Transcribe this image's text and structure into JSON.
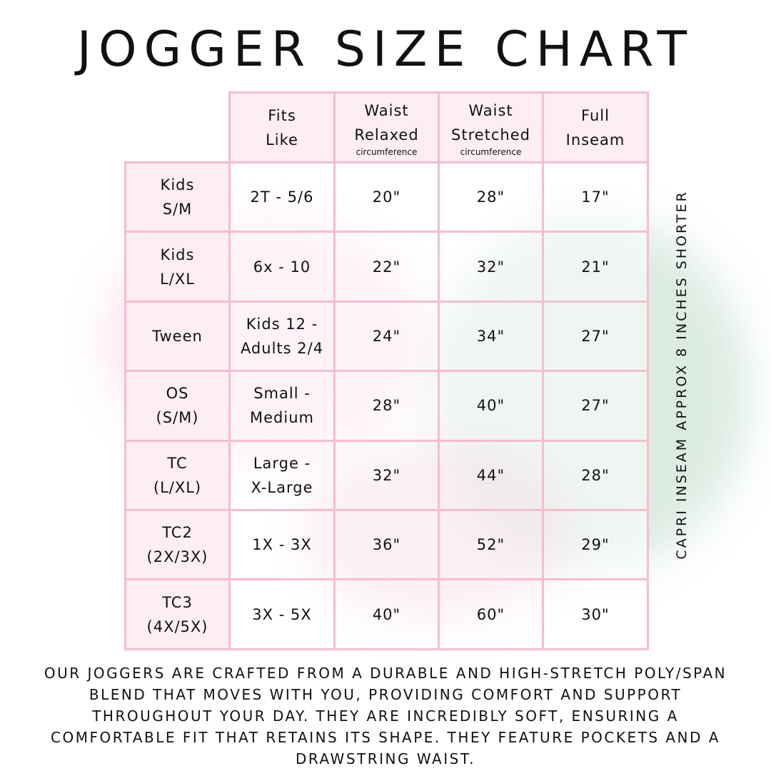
{
  "title": "JOGGER SIZE CHART",
  "headers": [
    {
      "line1": "Fits",
      "line2": "Like",
      "sub": ""
    },
    {
      "line1": "Waist",
      "line2": "Relaxed",
      "sub": "circumference"
    },
    {
      "line1": "Waist",
      "line2": "Stretched",
      "sub": "circumference"
    },
    {
      "line1": "Full",
      "line2": "Inseam",
      "sub": ""
    }
  ],
  "rows": [
    {
      "size": [
        "Kids",
        "S/M"
      ],
      "fits": [
        "2T - 5/6"
      ],
      "relaxed": "20\"",
      "stretched": "28\"",
      "inseam": "17\""
    },
    {
      "size": [
        "Kids",
        "L/XL"
      ],
      "fits": [
        "6x - 10"
      ],
      "relaxed": "22\"",
      "stretched": "32\"",
      "inseam": "21\""
    },
    {
      "size": [
        "Tween"
      ],
      "fits": [
        "Kids 12 -",
        "Adults 2/4"
      ],
      "relaxed": "24\"",
      "stretched": "34\"",
      "inseam": "27\""
    },
    {
      "size": [
        "OS",
        "(S/M)"
      ],
      "fits": [
        "Small -",
        "Medium"
      ],
      "relaxed": "28\"",
      "stretched": "40\"",
      "inseam": "27\""
    },
    {
      "size": [
        "TC",
        "(L/XL)"
      ],
      "fits": [
        "Large -",
        "X-Large"
      ],
      "relaxed": "32\"",
      "stretched": "44\"",
      "inseam": "28\""
    },
    {
      "size": [
        "TC2",
        "(2X/3X)"
      ],
      "fits": [
        "1X - 3X"
      ],
      "relaxed": "36\"",
      "stretched": "52\"",
      "inseam": "29\""
    },
    {
      "size": [
        "TC3",
        "(4X/5X)"
      ],
      "fits": [
        "3X - 5X"
      ],
      "relaxed": "40\"",
      "stretched": "60\"",
      "inseam": "30\""
    }
  ],
  "side_note": "CAPRI INSEAM APPROX 8 INCHES SHORTER",
  "footer": "OUR JOGGERS ARE CRAFTED FROM A DURABLE AND HIGH-STRETCH POLY/SPAN BLEND THAT MOVES WITH YOU, PROVIDING COMFORT AND SUPPORT THROUGHOUT YOUR DAY. THEY ARE INCREDIBLY SOFT, ENSURING A COMFORTABLE FIT THAT RETAINS ITS SHAPE. THEY FEATURE POCKETS AND A DRAWSTRING WAIST.",
  "colors": {
    "border": "#f7bccd",
    "header_bg": "#fdeef3"
  }
}
